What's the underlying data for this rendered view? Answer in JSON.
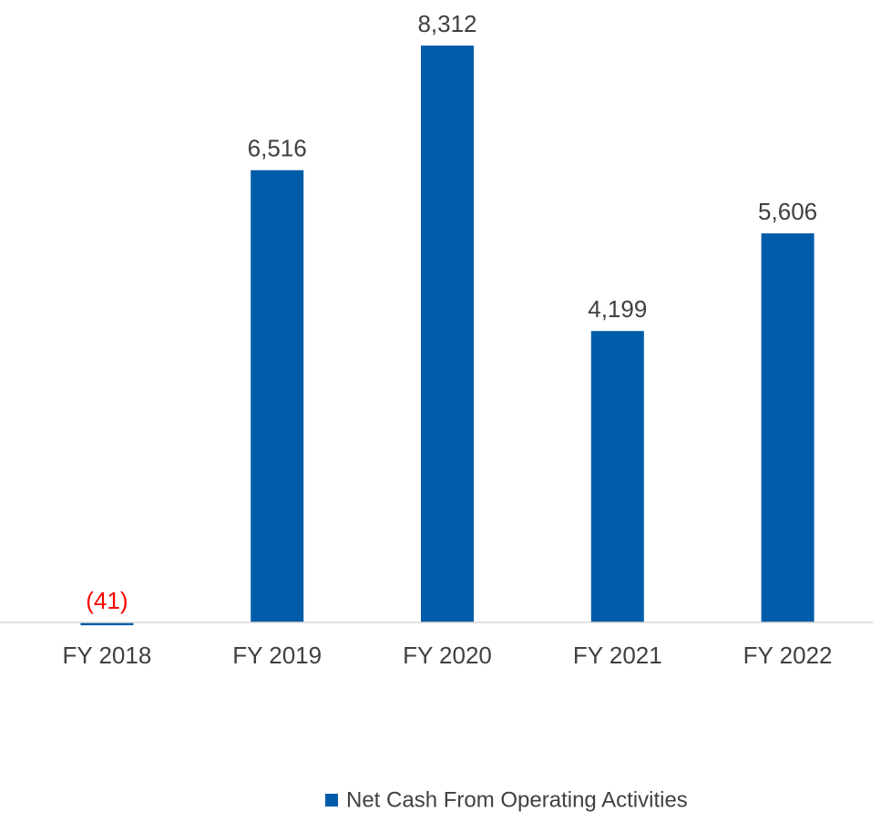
{
  "chart_data": {
    "type": "bar",
    "categories": [
      "FY 2018",
      "FY 2019",
      "FY 2020",
      "FY 2021",
      "FY 2022"
    ],
    "series": [
      {
        "name": "Net Cash From Operating Activities",
        "color": "#005ba8",
        "values": [
          -41,
          6516,
          8312,
          4199,
          5606
        ],
        "value_labels": [
          "(41)",
          "6,516",
          "8,312",
          "4,199",
          "5,606"
        ]
      }
    ],
    "negative_label_color": "#ff0000",
    "legend": "bottom"
  }
}
